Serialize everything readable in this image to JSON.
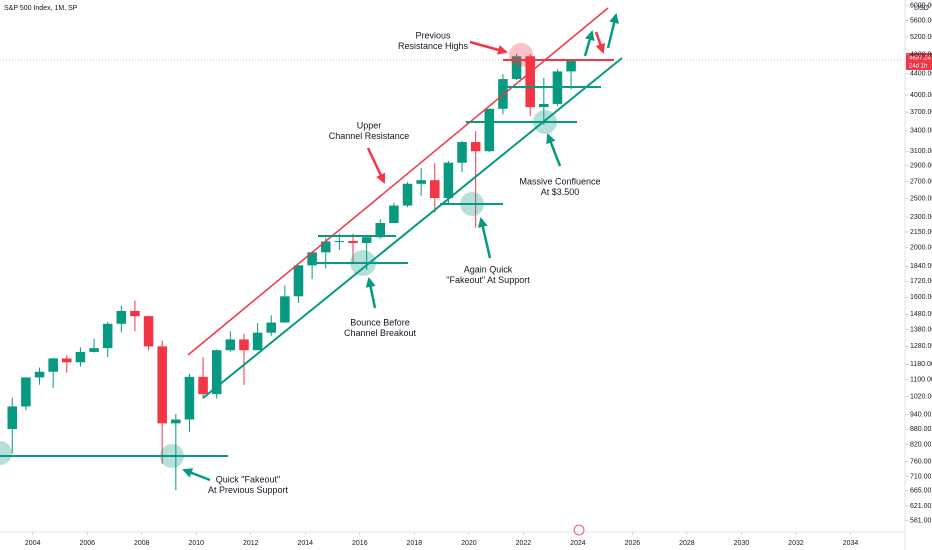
{
  "chart_data": {
    "type": "candlestick",
    "title": "S&P 500 Index, 1M, SP",
    "currency": "USD",
    "price_label": "4697.24",
    "countdown_label": "24d 1h",
    "log_scale": true,
    "up_color": "#089981",
    "down_color": "#f23645",
    "xlim": [
      2002.8,
      2036
    ],
    "xticks": [
      2004,
      2006,
      2008,
      2010,
      2012,
      2014,
      2016,
      2018,
      2020,
      2022,
      2024,
      2026,
      2028,
      2030,
      2032,
      2034
    ],
    "ylim": [
      557,
      6150
    ],
    "yticks": [
      {
        "value": 581,
        "label": "581.00"
      },
      {
        "value": 621,
        "label": "621.00"
      },
      {
        "value": 665,
        "label": "665.00"
      },
      {
        "value": 710,
        "label": "710.00"
      },
      {
        "value": 760,
        "label": "760.00"
      },
      {
        "value": 820,
        "label": "820.00"
      },
      {
        "value": 880,
        "label": "880.00"
      },
      {
        "value": 940,
        "label": "940.00"
      },
      {
        "value": 1020,
        "label": "1020.00"
      },
      {
        "value": 1100,
        "label": "1100.00"
      },
      {
        "value": 1180,
        "label": "1180.00"
      },
      {
        "value": 1280,
        "label": "1280.00"
      },
      {
        "value": 1380,
        "label": "1380.00"
      },
      {
        "value": 1480,
        "label": "1480.00"
      },
      {
        "value": 1600,
        "label": "1600.00"
      },
      {
        "value": 1720,
        "label": "1720.00"
      },
      {
        "value": 1840,
        "label": "1840.00"
      },
      {
        "value": 2000,
        "label": "2000.00"
      },
      {
        "value": 2150,
        "label": "2150.00"
      },
      {
        "value": 2300,
        "label": "2300.00"
      },
      {
        "value": 2500,
        "label": "2500.00"
      },
      {
        "value": 2700,
        "label": "2700.00"
      },
      {
        "value": 2900,
        "label": "2900.00"
      },
      {
        "value": 3100,
        "label": "3100.00"
      },
      {
        "value": 3400,
        "label": "3400.00"
      },
      {
        "value": 3700,
        "label": "3700.00"
      },
      {
        "value": 4000,
        "label": "4000.00"
      },
      {
        "value": 4400,
        "label": "4400.00"
      },
      {
        "value": 4800,
        "label": "4800.00"
      },
      {
        "value": 5200,
        "label": "5200.00"
      },
      {
        "value": 5600,
        "label": "5600.00"
      },
      {
        "value": 6000,
        "label": "6000.00"
      }
    ],
    "x": [
      2003.0,
      2003.5,
      2004.0,
      2004.5,
      2005.0,
      2005.5,
      2006.0,
      2006.5,
      2007.0,
      2007.5,
      2008.0,
      2008.5,
      2009.0,
      2009.5,
      2010.0,
      2010.5,
      2011.0,
      2011.5,
      2012.0,
      2012.5,
      2013.0,
      2013.5,
      2014.0,
      2014.5,
      2015.0,
      2015.5,
      2016.0,
      2016.5,
      2017.0,
      2017.5,
      2018.0,
      2018.5,
      2019.0,
      2019.5,
      2020.0,
      2020.5,
      2021.0,
      2021.5,
      2022.0,
      2022.5,
      2023.0,
      2023.5
    ],
    "open": [
      880,
      975,
      1112,
      1141,
      1212,
      1191,
      1248,
      1270,
      1418,
      1503,
      1468,
      1280,
      903,
      919,
      1115,
      1031,
      1258,
      1321,
      1258,
      1362,
      1426,
      1606,
      1848,
      1960,
      2059,
      2063,
      2044,
      2099,
      2239,
      2423,
      2674,
      2718,
      2507,
      2942,
      3231,
      3100,
      3756,
      4298,
      4766,
      3785,
      3840,
      4450
    ],
    "high": [
      1015,
      1112,
      1163,
      1217,
      1230,
      1275,
      1326,
      1431,
      1540,
      1576,
      1471,
      1313,
      943,
      1130,
      1219,
      1262,
      1370,
      1356,
      1422,
      1474,
      1687,
      1849,
      1968,
      2093,
      2134,
      2132,
      2111,
      2278,
      2454,
      2695,
      2873,
      2940,
      2964,
      3247,
      3394,
      3760,
      4392,
      4818,
      4818,
      4325,
      4493,
      4700
    ],
    "low": [
      788,
      960,
      1076,
      1060,
      1136,
      1168,
      1245,
      1219,
      1364,
      1370,
      1256,
      752,
      667,
      869,
      1011,
      1010,
      1249,
      1075,
      1266,
      1343,
      1426,
      1560,
      1737,
      1821,
      1981,
      1867,
      1810,
      2084,
      2245,
      2406,
      2533,
      2347,
      2444,
      2822,
      2192,
      3088,
      3662,
      4278,
      3637,
      3492,
      3808,
      4103
    ],
    "close": [
      975,
      1112,
      1141,
      1212,
      1191,
      1248,
      1270,
      1418,
      1503,
      1468,
      1280,
      903,
      919,
      1115,
      1031,
      1258,
      1321,
      1258,
      1362,
      1426,
      1606,
      1848,
      1960,
      2059,
      2063,
      2044,
      2099,
      2239,
      2423,
      2674,
      2718,
      2507,
      2942,
      3231,
      3100,
      3756,
      4298,
      4766,
      3785,
      3840,
      4450,
      4697
    ],
    "annotations": [
      {
        "lines": [
          "Previous",
          "Resistance Highs"
        ]
      },
      {
        "lines": [
          "Upper",
          "Channel Resistance"
        ]
      },
      {
        "lines": [
          "Massive Confluence",
          "At $3.500"
        ]
      },
      {
        "lines": [
          "Again Quick",
          "\"Fakeout\" At Support"
        ]
      },
      {
        "lines": [
          "Bounce Before",
          "Channel Breakout"
        ]
      },
      {
        "lines": [
          "Quick \"Fakeout\"",
          "At Previous Support"
        ]
      }
    ]
  }
}
